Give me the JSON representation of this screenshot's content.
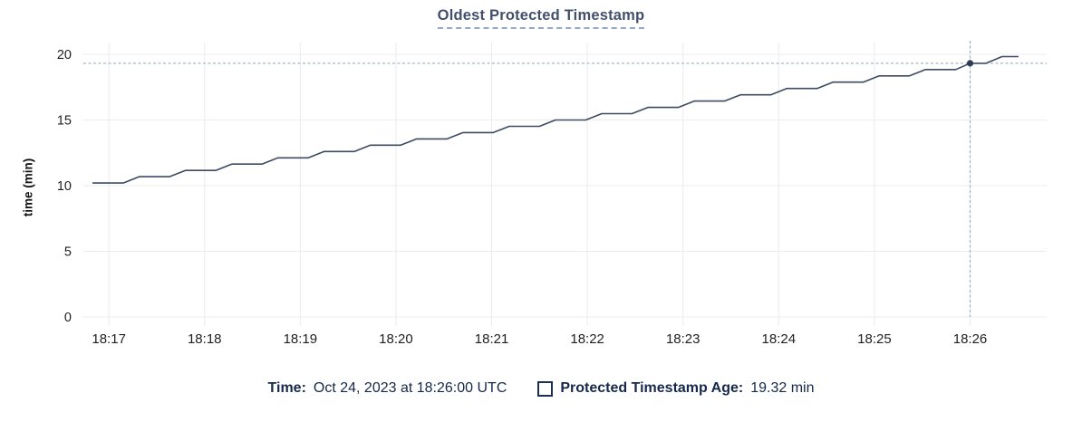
{
  "chart_data": {
    "type": "line",
    "title": "Oldest Protected Timestamp",
    "ylabel": "time (min)",
    "ylim": [
      0,
      20
    ],
    "y_ticks": [
      0,
      5,
      10,
      15,
      20
    ],
    "x_ticks": [
      "18:17",
      "18:18",
      "18:19",
      "18:20",
      "18:21",
      "18:22",
      "18:23",
      "18:24",
      "18:25",
      "18:26"
    ],
    "x_domain": [
      "18:16:44",
      "18:26:48"
    ],
    "grid": "on",
    "legend_position": "bottom",
    "series": [
      {
        "name": "Protected Timestamp Age",
        "unit": "min",
        "points": [
          [
            "18:16:50",
            10.2
          ],
          [
            "18:17:09",
            10.2
          ],
          [
            "18:17:19",
            10.68
          ],
          [
            "18:17:38",
            10.68
          ],
          [
            "18:17:48",
            11.16
          ],
          [
            "18:18:07",
            11.16
          ],
          [
            "18:18:17",
            11.64
          ],
          [
            "18:18:36",
            11.64
          ],
          [
            "18:18:46",
            12.12
          ],
          [
            "18:19:05",
            12.12
          ],
          [
            "18:19:15",
            12.6
          ],
          [
            "18:19:34",
            12.6
          ],
          [
            "18:19:44",
            13.08
          ],
          [
            "18:20:03",
            13.08
          ],
          [
            "18:20:13",
            13.56
          ],
          [
            "18:20:32",
            13.56
          ],
          [
            "18:20:42",
            14.04
          ],
          [
            "18:21:01",
            14.04
          ],
          [
            "18:21:11",
            14.52
          ],
          [
            "18:21:30",
            14.52
          ],
          [
            "18:21:40",
            15.0
          ],
          [
            "18:21:59",
            15.0
          ],
          [
            "18:22:09",
            15.48
          ],
          [
            "18:22:28",
            15.48
          ],
          [
            "18:22:38",
            15.96
          ],
          [
            "18:22:57",
            15.96
          ],
          [
            "18:23:07",
            16.44
          ],
          [
            "18:23:26",
            16.44
          ],
          [
            "18:23:36",
            16.92
          ],
          [
            "18:23:55",
            16.92
          ],
          [
            "18:24:05",
            17.4
          ],
          [
            "18:24:24",
            17.4
          ],
          [
            "18:24:34",
            17.88
          ],
          [
            "18:24:53",
            17.88
          ],
          [
            "18:25:03",
            18.36
          ],
          [
            "18:25:22",
            18.36
          ],
          [
            "18:25:32",
            18.84
          ],
          [
            "18:25:51",
            18.84
          ],
          [
            "18:26:00",
            19.32
          ],
          [
            "18:26:10",
            19.32
          ],
          [
            "18:26:20",
            19.83
          ],
          [
            "18:26:30",
            19.83
          ]
        ]
      }
    ],
    "crosshair": {
      "time": "18:26:00",
      "value": 19.32
    }
  },
  "footer": {
    "time_label": "Time:",
    "time_value": "Oct 24, 2023 at 18:26:00 UTC",
    "series_label": "Protected Timestamp Age:",
    "series_value": "19.32 min"
  },
  "colors": {
    "line": "#3d4b63",
    "dot": "#2e3d56",
    "crosshair": "#a2b7c4",
    "grid": "#ececec",
    "axis_text": "#1f1f1f",
    "title": "#43506c",
    "legend_text": "#16294a"
  }
}
